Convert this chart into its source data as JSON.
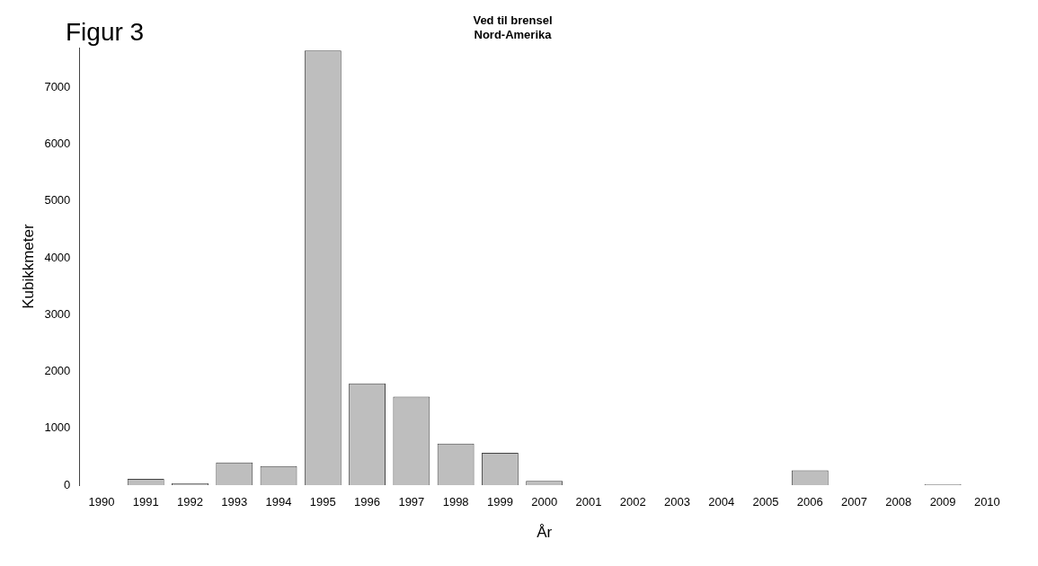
{
  "chart_data": {
    "type": "bar",
    "title": "Ved til brensel",
    "subtitle": "Nord-Amerika",
    "xlabel": "År",
    "ylabel": "Kubikkmeter",
    "annotations": [
      "Figur 3"
    ],
    "categories": [
      "1990",
      "1991",
      "1992",
      "1993",
      "1994",
      "1995",
      "1996",
      "1997",
      "1998",
      "1999",
      "2000",
      "2001",
      "2002",
      "2003",
      "2004",
      "2005",
      "2006",
      "2007",
      "2008",
      "2009",
      "2010"
    ],
    "values": [
      0,
      110,
      35,
      400,
      335,
      7650,
      1790,
      1560,
      730,
      570,
      75,
      0,
      0,
      0,
      0,
      0,
      260,
      0,
      0,
      15,
      0
    ],
    "color": "#bebebe",
    "ylim": [
      0,
      7700
    ],
    "yticks": [
      0,
      1000,
      2000,
      3000,
      4000,
      5000,
      6000,
      7000
    ],
    "grid": false,
    "legend": false
  }
}
